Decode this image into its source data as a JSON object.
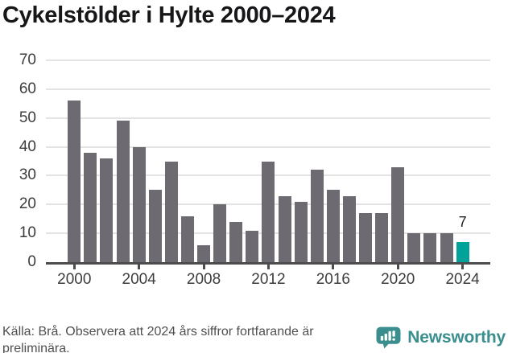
{
  "title": "Cykelstölder i Hylte 2000–2024",
  "chart_data": {
    "type": "bar",
    "title": "Cykelstölder i Hylte 2000–2024",
    "x": [
      2000,
      2001,
      2002,
      2003,
      2004,
      2005,
      2006,
      2007,
      2008,
      2009,
      2010,
      2011,
      2012,
      2013,
      2014,
      2015,
      2016,
      2017,
      2018,
      2019,
      2020,
      2021,
      2022,
      2023,
      2024
    ],
    "values": [
      56,
      38,
      36,
      49,
      40,
      25,
      35,
      16,
      6,
      20,
      14,
      11,
      35,
      23,
      21,
      32,
      25,
      23,
      17,
      17,
      33,
      10,
      10,
      10,
      7
    ],
    "highlight_year": 2024,
    "highlight_value_label": "7",
    "xlabel": "",
    "ylabel": "",
    "ylim": [
      0,
      70
    ],
    "yticks": [
      0,
      10,
      20,
      30,
      40,
      50,
      60,
      70
    ],
    "xticks": [
      2000,
      2004,
      2008,
      2012,
      2016,
      2020,
      2024
    ],
    "grid": "horizontal",
    "legend_position": "none",
    "bar_color": "#6e6a72",
    "highlight_color": "#00a29a"
  },
  "colors": {
    "axis_line": "#4c4c4c",
    "grid_line": "#e4e4e4",
    "axis_text": "#3d3d3d",
    "title_text": "#17171a",
    "footer_text": "#4f4f4f",
    "brand_teal": "#3a8f8e"
  },
  "footer": {
    "source_note": "Källa: Brå. Observera att 2024 års siffror fortfarande är preliminära.",
    "brand_name": "Newsworthy"
  },
  "icons": {
    "brand_logo": "speech-bubble-bar-chart-icon"
  }
}
